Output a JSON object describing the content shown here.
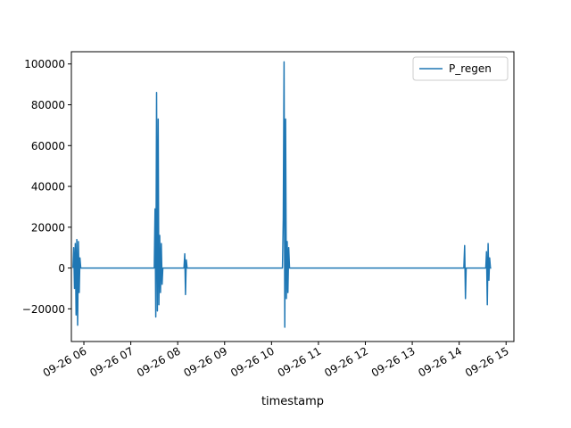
{
  "chart_data": {
    "type": "line",
    "title": "",
    "xlabel": "timestamp",
    "ylabel": "",
    "ylim": [
      -36000,
      106000
    ],
    "xlim": [
      "09-26 05:44",
      "09-26 15:10"
    ],
    "y_ticks": [
      -20000,
      0,
      20000,
      40000,
      60000,
      80000,
      100000
    ],
    "x_ticks": [
      "09-26 06",
      "09-26 07",
      "09-26 08",
      "09-26 09",
      "09-26 10",
      "09-26 11",
      "09-26 12",
      "09-26 13",
      "09-26 14",
      "09-26 15"
    ],
    "legend_position": "top-right",
    "grid": false,
    "color": "#1f77b4",
    "series": [
      {
        "name": "P_regen",
        "points": [
          [
            "09-26 05:46",
            0
          ],
          [
            "09-26 05:47",
            10000
          ],
          [
            "09-26 05:48",
            -10000
          ],
          [
            "09-26 05:49",
            12000
          ],
          [
            "09-26 05:50",
            -23000
          ],
          [
            "09-26 05:51",
            14000
          ],
          [
            "09-26 05:52",
            -28000
          ],
          [
            "09-26 05:53",
            13000
          ],
          [
            "09-26 05:54",
            -12000
          ],
          [
            "09-26 05:55",
            5000
          ],
          [
            "09-26 05:56",
            0
          ],
          [
            "09-26 05:58",
            0
          ],
          [
            "09-26 07:30",
            0
          ],
          [
            "09-26 07:31",
            29000
          ],
          [
            "09-26 07:32",
            -24000
          ],
          [
            "09-26 07:33",
            86000
          ],
          [
            "09-26 07:34",
            -21000
          ],
          [
            "09-26 07:35",
            73000
          ],
          [
            "09-26 07:36",
            -18000
          ],
          [
            "09-26 07:37",
            16000
          ],
          [
            "09-26 07:38",
            -12000
          ],
          [
            "09-26 07:39",
            12000
          ],
          [
            "09-26 07:40",
            -8000
          ],
          [
            "09-26 07:41",
            0
          ],
          [
            "09-26 08:08",
            0
          ],
          [
            "09-26 08:09",
            7000
          ],
          [
            "09-26 08:10",
            -13000
          ],
          [
            "09-26 08:11",
            4000
          ],
          [
            "09-26 08:12",
            0
          ],
          [
            "09-26 10:14",
            0
          ],
          [
            "09-26 10:15",
            24000
          ],
          [
            "09-26 10:16",
            101000
          ],
          [
            "09-26 10:17",
            -29000
          ],
          [
            "09-26 10:18",
            73000
          ],
          [
            "09-26 10:19",
            -15000
          ],
          [
            "09-26 10:20",
            13000
          ],
          [
            "09-26 10:21",
            -12000
          ],
          [
            "09-26 10:22",
            10000
          ],
          [
            "09-26 10:23",
            0
          ],
          [
            "09-26 14:06",
            0
          ],
          [
            "09-26 14:07",
            11000
          ],
          [
            "09-26 14:08",
            -15000
          ],
          [
            "09-26 14:09",
            0
          ],
          [
            "09-26 14:34",
            0
          ],
          [
            "09-26 14:35",
            8000
          ],
          [
            "09-26 14:36",
            -18000
          ],
          [
            "09-26 14:37",
            12000
          ],
          [
            "09-26 14:38",
            -6000
          ],
          [
            "09-26 14:39",
            5000
          ],
          [
            "09-26 14:40",
            0
          ],
          [
            "09-26 14:41",
            0
          ]
        ]
      }
    ]
  }
}
